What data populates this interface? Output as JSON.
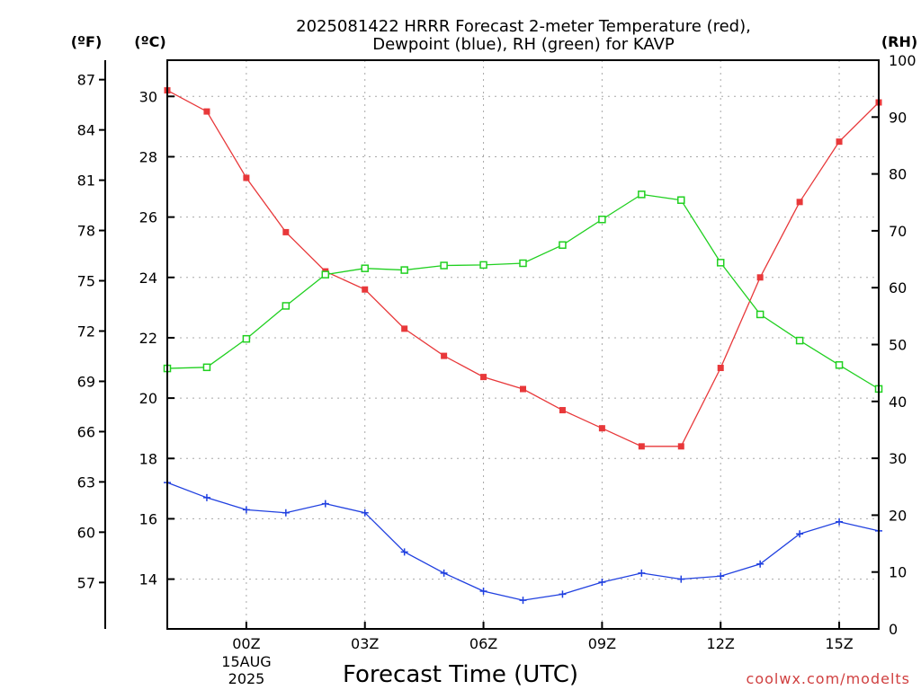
{
  "chart_data": {
    "type": "line",
    "title_line1": "2025081422 HRRR Forecast 2-meter Temperature (red),",
    "title_line2": "Dewpoint (blue), RH (green) for KAVP",
    "xlabel": "Forecast Time (UTC)",
    "credit": "coolwx.com/modelts",
    "unit_f": "(ºF)",
    "unit_c": "(ºC)",
    "unit_rh": "(RH)",
    "x": [
      "22Z",
      "23Z",
      "00Z",
      "01Z",
      "02Z",
      "03Z",
      "04Z",
      "05Z",
      "06Z",
      "07Z",
      "08Z",
      "09Z",
      "10Z",
      "11Z",
      "12Z",
      "13Z",
      "14Z",
      "15Z",
      "16Z"
    ],
    "x_tick_labels": [
      {
        "label": "00Z",
        "index": 2
      },
      {
        "label": "03Z",
        "index": 5
      },
      {
        "label": "06Z",
        "index": 8
      },
      {
        "label": "09Z",
        "index": 11
      },
      {
        "label": "12Z",
        "index": 14
      },
      {
        "label": "15Z",
        "index": 17
      }
    ],
    "date_label_line1": "15AUG",
    "date_label_line2": "2025",
    "ylim_c": [
      12.35,
      31.2
    ],
    "ylim_rh": [
      0,
      100
    ],
    "y_ticks_c": [
      14,
      16,
      18,
      20,
      22,
      24,
      26,
      28,
      30
    ],
    "y_ticks_f": [
      57,
      60,
      63,
      66,
      69,
      72,
      75,
      78,
      81,
      84,
      87
    ],
    "y_ticks_rh": [
      0,
      10,
      20,
      30,
      40,
      50,
      60,
      70,
      80,
      90,
      100
    ],
    "series": [
      {
        "name": "Temperature",
        "axis": "c",
        "color": "#e8383a",
        "marker": "square-filled",
        "values": [
          30.2,
          29.5,
          27.3,
          25.5,
          24.2,
          23.6,
          22.3,
          21.4,
          20.7,
          20.3,
          19.6,
          19.0,
          18.4,
          18.4,
          21.0,
          24.0,
          26.5,
          28.5,
          29.8
        ]
      },
      {
        "name": "Dewpoint",
        "axis": "c",
        "color": "#2040e0",
        "marker": "plus",
        "values": [
          17.2,
          16.7,
          16.3,
          16.2,
          16.5,
          16.2,
          14.9,
          14.2,
          13.6,
          13.3,
          13.5,
          13.9,
          14.2,
          14.0,
          14.1,
          14.5,
          15.5,
          15.9,
          15.6
        ]
      },
      {
        "name": "RH",
        "axis": "rh",
        "color": "#20d020",
        "marker": "square-open",
        "values": [
          45.8,
          46.0,
          51.0,
          56.8,
          62.3,
          63.4,
          63.1,
          63.9,
          64.0,
          64.3,
          67.5,
          72.0,
          76.4,
          75.4,
          64.4,
          55.3,
          50.7,
          46.4,
          42.2
        ]
      }
    ]
  }
}
